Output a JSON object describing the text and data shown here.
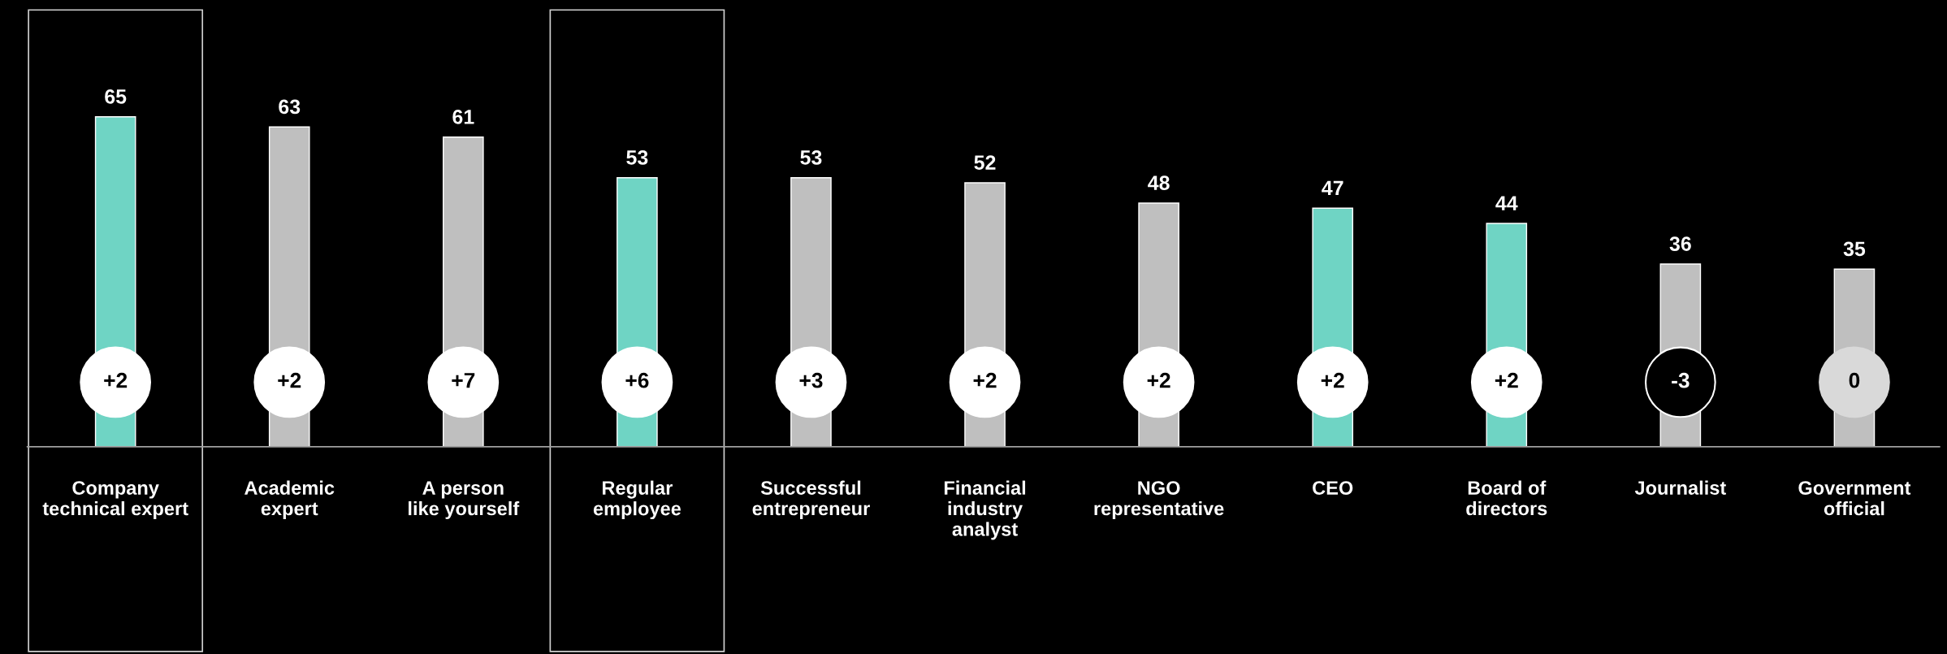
{
  "chart_data": {
    "type": "bar",
    "categories": [
      "Company\ntechnical expert",
      "Academic\nexpert",
      "A person\nlike yourself",
      "Regular\nemployee",
      "Successful\nentrepreneur",
      "Financial\nindustry\nanalyst",
      "NGO\nrepresentative",
      "CEO",
      "Board of\ndirectors",
      "Journalist",
      "Government\nofficial"
    ],
    "values": [
      65,
      63,
      61,
      53,
      53,
      52,
      48,
      47,
      44,
      36,
      35
    ],
    "colors": [
      "#6fd4c4",
      "#bfbfbf",
      "#bfbfbf",
      "#6fd4c4",
      "#bfbfbf",
      "#bfbfbf",
      "#bfbfbf",
      "#6fd4c4",
      "#6fd4c4",
      "#bfbfbf",
      "#bfbfbf"
    ],
    "data_labels": true,
    "annotations": [
      "+2",
      "+2",
      "+7",
      "+6",
      "+3",
      "+2",
      "+2",
      "+2",
      "+2",
      "-3",
      "0"
    ]
  }
}
